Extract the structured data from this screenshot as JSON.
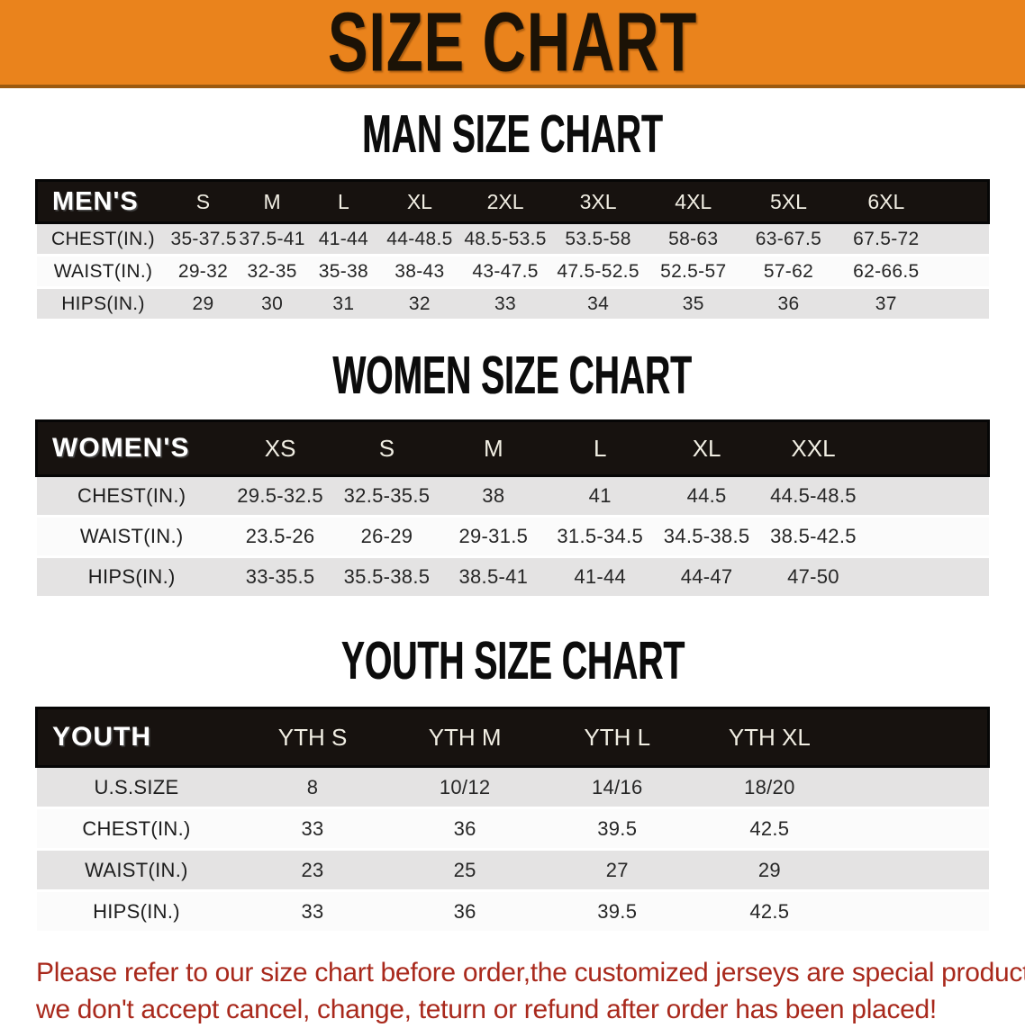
{
  "banner": {
    "title": "SIZE CHART",
    "background_color": "#ea831c"
  },
  "sections": [
    {
      "heading": "MAN SIZE CHART",
      "table": {
        "label": "MEN'S",
        "columns": [
          "S",
          "M",
          "L",
          "XL",
          "2XL",
          "3XL",
          "4XL",
          "5XL",
          "6XL"
        ],
        "rows": [
          {
            "label": "CHEST(IN.)",
            "values": [
              "35-37.5",
              "37.5-41",
              "41-44",
              "44-48.5",
              "48.5-53.5",
              "53.5-58",
              "58-63",
              "63-67.5",
              "67.5-72"
            ]
          },
          {
            "label": "WAIST(IN.)",
            "values": [
              "29-32",
              "32-35",
              "35-38",
              "38-43",
              "43-47.5",
              "47.5-52.5",
              "52.5-57",
              "57-62",
              "62-66.5"
            ]
          },
          {
            "label": "HIPS(IN.)",
            "values": [
              "29",
              "30",
              "31",
              "32",
              "33",
              "34",
              "35",
              "36",
              "37"
            ]
          }
        ]
      }
    },
    {
      "heading": "WOMEN SIZE CHART",
      "table": {
        "label": "WOMEN'S",
        "columns": [
          "XS",
          "S",
          "M",
          "L",
          "XL",
          "XXL"
        ],
        "rows": [
          {
            "label": "CHEST(IN.)",
            "values": [
              "29.5-32.5",
              "32.5-35.5",
              "38",
              "41",
              "44.5",
              "44.5-48.5"
            ]
          },
          {
            "label": "WAIST(IN.)",
            "values": [
              "23.5-26",
              "26-29",
              "29-31.5",
              "31.5-34.5",
              "34.5-38.5",
              "38.5-42.5"
            ]
          },
          {
            "label": "HIPS(IN.)",
            "values": [
              "33-35.5",
              "35.5-38.5",
              "38.5-41",
              "41-44",
              "44-47",
              "47-50"
            ]
          }
        ]
      }
    },
    {
      "heading": "YOUTH SIZE CHART",
      "table": {
        "label": "YOUTH",
        "columns": [
          "YTH S",
          "YTH M",
          "YTH L",
          "YTH XL"
        ],
        "rows": [
          {
            "label": "U.S.SIZE",
            "values": [
              "8",
              "10/12",
              "14/16",
              "18/20"
            ]
          },
          {
            "label": "CHEST(IN.)",
            "values": [
              "33",
              "36",
              "39.5",
              "42.5"
            ]
          },
          {
            "label": "WAIST(IN.)",
            "values": [
              "23",
              "25",
              "27",
              "29"
            ]
          },
          {
            "label": "HIPS(IN.)",
            "values": [
              "33",
              "36",
              "39.5",
              "42.5"
            ]
          }
        ]
      }
    }
  ],
  "disclaimer": {
    "color": "#a9291c",
    "lines": [
      "Please refer to our size chart before order,the customized jerseys are special products,",
      "we don't accept cancel, change, teturn or refund after order has been placed!"
    ]
  }
}
